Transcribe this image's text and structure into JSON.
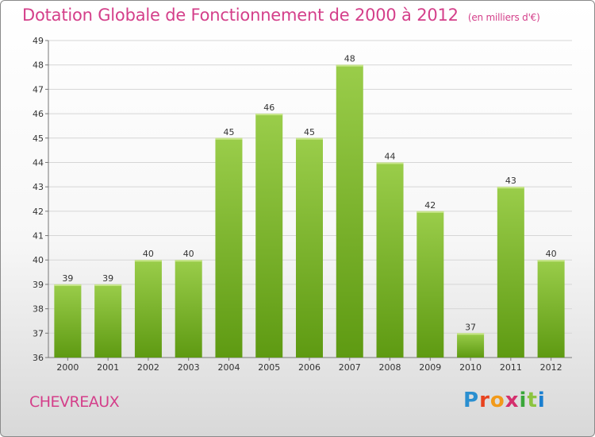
{
  "header": {
    "title": "Dotation Globale de Fonctionnement de 2000 à 2012",
    "unit": "(en milliers d'€)"
  },
  "footer": {
    "commune": "CHEVREAUX",
    "brand": "Proxiti",
    "brand_colors": [
      "#2a8fd0",
      "#e8431f",
      "#f29a1a",
      "#d42f6d",
      "#3aa63a",
      "#8cc43f",
      "#1a7fd0"
    ]
  },
  "colors": {
    "accent": "#d43f8a",
    "bar_top": "#9acd4a",
    "bar_bottom": "#5e9a12"
  },
  "chart_data": {
    "type": "bar",
    "title": "Dotation Globale de Fonctionnement de 2000 à 2012",
    "subtitle": "(en milliers d'€)",
    "categories": [
      "2000",
      "2001",
      "2002",
      "2003",
      "2004",
      "2005",
      "2006",
      "2007",
      "2008",
      "2009",
      "2010",
      "2011",
      "2012"
    ],
    "values": [
      39,
      39,
      40,
      40,
      45,
      46,
      45,
      48,
      44,
      42,
      37,
      43,
      40
    ],
    "ylim": [
      36,
      49
    ],
    "yticks": [
      36,
      37,
      38,
      39,
      40,
      41,
      42,
      43,
      44,
      45,
      46,
      47,
      48,
      49
    ],
    "grid": true
  }
}
